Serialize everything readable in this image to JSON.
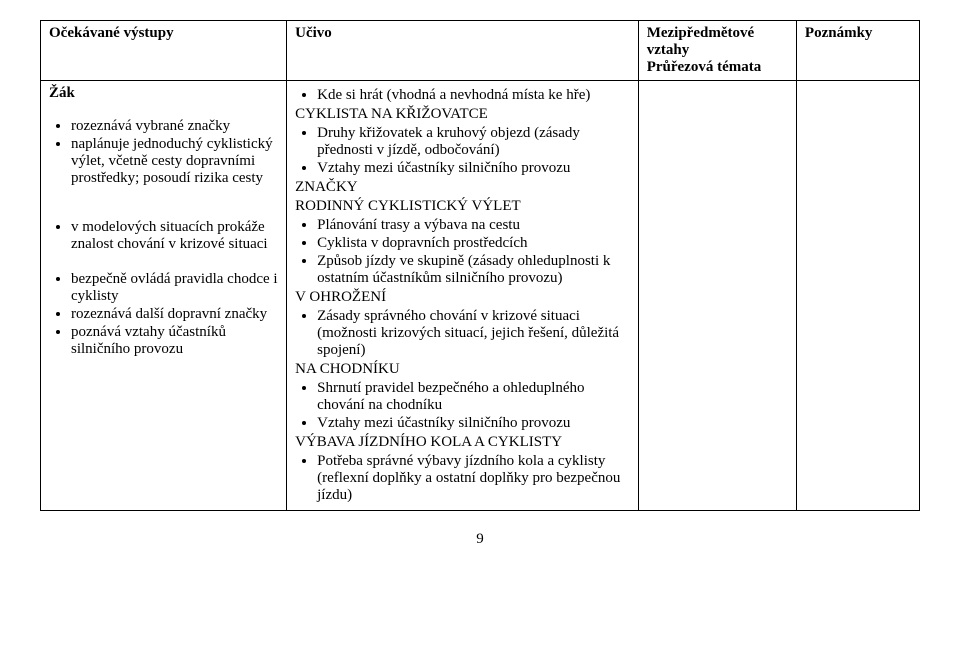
{
  "headers": {
    "col1": "Očekávané výstupy",
    "col2": "Učivo",
    "col3a": "Mezipředmětové vztahy",
    "col3b": "Průřezová témata",
    "col4": "Poznámky"
  },
  "col1": {
    "lead": "Žák",
    "group1": [
      "rozeznává vybrané značky",
      "naplánuje jednoduchý cyklistický výlet, včetně cesty dopravními prostředky; posoudí rizika cesty"
    ],
    "group2": [
      "v modelových situacích prokáže znalost chování v krizové situaci"
    ],
    "group3": [
      "bezpečně ovládá pravidla chodce i cyklisty",
      "rozeznává další dopravní značky",
      "poznává vztahy účastníků silničního provozu"
    ]
  },
  "col2": {
    "b1": "Kde si hrát (vhodná a nevhodná místa ke hře)",
    "s1": "CYKLISTA NA KŘIŽOVATCE",
    "b2": "Druhy křižovatek a kruhový objezd (zásady přednosti v jízdě, odbočování)",
    "b3": "Vztahy mezi účastníky silničního provozu",
    "s2": "ZNAČKY",
    "s3": "RODINNÝ CYKLISTICKÝ VÝLET",
    "b4": "Plánování trasy a výbava na cestu",
    "b5": "Cyklista v dopravních prostředcích",
    "b6": "Způsob jízdy ve skupině (zásady ohleduplnosti k ostatním účastníkům silničního provozu)",
    "s4": "V OHROŽENÍ",
    "b7": "Zásady správného chování v krizové situaci (možnosti krizových situací, jejich řešení, důležitá spojení)",
    "s5": " NA CHODNÍKU",
    "b8": "Shrnutí pravidel bezpečného a ohleduplného chování na chodníku",
    "b9": "Vztahy mezi účastníky silničního provozu",
    "s6": "VÝBAVA JÍZDNÍHO KOLA A CYKLISTY",
    "b10": "Potřeba správné výbavy jízdního kola a cyklisty (reflexní doplňky a ostatní doplňky pro bezpečnou jízdu)"
  },
  "pageNumber": "9"
}
